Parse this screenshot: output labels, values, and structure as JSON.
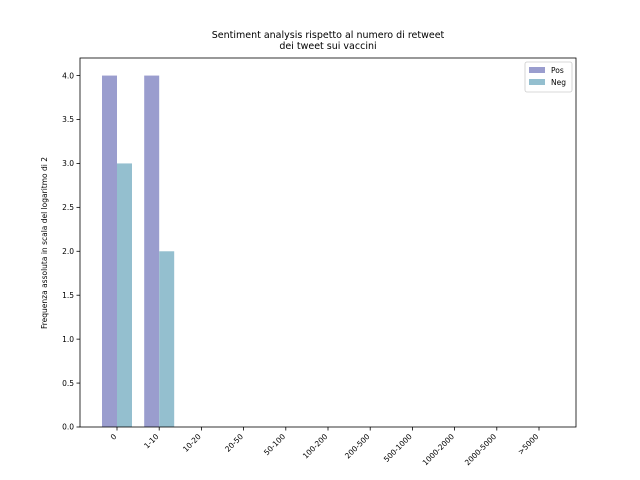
{
  "chart_data": {
    "type": "bar",
    "title_line1": "Sentiment analysis rispetto al numero di retweet",
    "title_line2": "dei tweet sui vaccini",
    "xlabel": "",
    "ylabel": "Frequenza assoluta in scala del logaritmo di 2",
    "categories": [
      "0",
      "1-10",
      "10-20",
      "20-50",
      "50-100",
      "100-200",
      "200-500",
      "500-1000",
      "1000-2000",
      "2000-5000",
      ">5000"
    ],
    "series": [
      {
        "name": "Pos",
        "color": "#9a9dce",
        "values": [
          4.0,
          4.0,
          0,
          0,
          0,
          0,
          0,
          0,
          0,
          0,
          0
        ]
      },
      {
        "name": "Neg",
        "color": "#94bfcf",
        "values": [
          3.0,
          2.0,
          0,
          0,
          0,
          0,
          0,
          0,
          0,
          0,
          0
        ]
      }
    ],
    "ylim": [
      0,
      4.2
    ],
    "yticks": [
      "0.0",
      "0.5",
      "1.0",
      "1.5",
      "2.0",
      "2.5",
      "3.0",
      "3.5",
      "4.0"
    ],
    "grid": false,
    "legend_position": "top-right"
  }
}
